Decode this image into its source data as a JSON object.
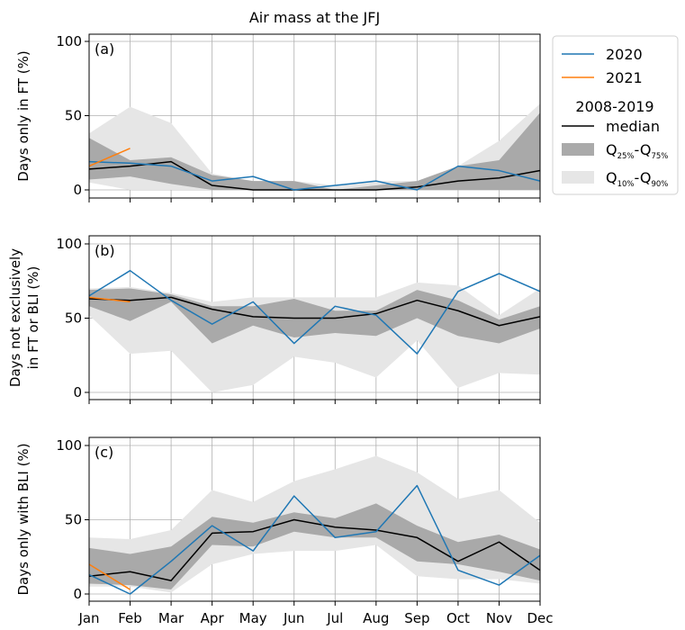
{
  "chart_data": {
    "type": "area",
    "title": "Air mass at the JFJ",
    "months": [
      "Jan",
      "Feb",
      "Mar",
      "Apr",
      "May",
      "Jun",
      "Jul",
      "Aug",
      "Sep",
      "Oct",
      "Nov",
      "Dec"
    ],
    "ylim": [
      0,
      100
    ],
    "yticks": [
      0,
      50,
      100
    ],
    "grid": true,
    "legend": {
      "placement": "right of top panel",
      "entries": [
        {
          "label": "2020",
          "color": "#1f77b4",
          "kind": "line"
        },
        {
          "label": "2021",
          "color": "#ff7f0e",
          "kind": "line"
        },
        {
          "label": "2008-2019",
          "kind": "header"
        },
        {
          "label": "median",
          "color": "#000000",
          "kind": "line"
        },
        {
          "label": "Q",
          "sub1": "25%",
          "mid": "-Q",
          "sub2": "75%",
          "color": "#aaaaaa",
          "kind": "patch"
        },
        {
          "label": "Q",
          "sub1": "10%",
          "mid": "-Q",
          "sub2": "90%",
          "color": "#e6e6e6",
          "kind": "patch"
        }
      ]
    },
    "panels": [
      {
        "label": "(a)",
        "ylabel": [
          "Days only in FT (%)"
        ],
        "s2020": [
          19,
          18,
          16,
          6,
          9,
          0,
          3,
          6,
          0,
          16,
          13,
          6
        ],
        "s2021": [
          16,
          28
        ],
        "median": [
          14,
          16,
          19,
          3,
          0,
          0,
          0,
          0,
          2,
          6,
          8,
          13
        ],
        "q25": [
          7,
          9,
          4,
          0,
          0,
          0,
          0,
          0,
          0,
          0,
          0,
          0
        ],
        "q75": [
          35,
          20,
          22,
          10,
          6,
          6,
          0,
          3,
          6,
          16,
          20,
          52
        ],
        "q10": [
          5,
          0,
          0,
          0,
          0,
          0,
          0,
          0,
          0,
          0,
          0,
          0
        ],
        "q90": [
          38,
          56,
          45,
          11,
          6,
          6,
          3,
          6,
          6,
          16,
          33,
          58
        ]
      },
      {
        "label": "(b)",
        "ylabel": [
          "Days not exclusively",
          "in FT or BLI (%)"
        ],
        "s2020": [
          65,
          82,
          62,
          46,
          61,
          33,
          58,
          52,
          26,
          68,
          80,
          68
        ],
        "s2021": [
          64,
          61
        ],
        "median": [
          63,
          62,
          64,
          56,
          51,
          50,
          50,
          53,
          62,
          55,
          45,
          51
        ],
        "q25": [
          58,
          48,
          61,
          33,
          45,
          37,
          40,
          38,
          50,
          38,
          33,
          43
        ],
        "q75": [
          69,
          70,
          66,
          58,
          58,
          63,
          55,
          55,
          69,
          62,
          49,
          58
        ],
        "q10": [
          52,
          26,
          28,
          0,
          5,
          24,
          20,
          10,
          35,
          3,
          13,
          12
        ],
        "q90": [
          70,
          71,
          67,
          61,
          64,
          64,
          64,
          64,
          74,
          72,
          52,
          70
        ]
      },
      {
        "label": "(c)",
        "ylabel": [
          "Days only with BLI (%)"
        ],
        "s2020": [
          13,
          0,
          22,
          46,
          29,
          66,
          38,
          42,
          73,
          16,
          6,
          26
        ],
        "s2021": [
          20,
          3
        ],
        "median": [
          12,
          15,
          9,
          41,
          42,
          50,
          45,
          43,
          38,
          22,
          35,
          16
        ],
        "q25": [
          7,
          6,
          3,
          33,
          32,
          42,
          38,
          38,
          22,
          20,
          15,
          9
        ],
        "q75": [
          31,
          27,
          32,
          52,
          48,
          55,
          51,
          61,
          46,
          35,
          40,
          30
        ],
        "q10": [
          5,
          5,
          1,
          20,
          27,
          29,
          29,
          33,
          12,
          10,
          10,
          7
        ],
        "q90": [
          38,
          37,
          43,
          70,
          62,
          76,
          84,
          93,
          82,
          64,
          70,
          48
        ]
      }
    ]
  }
}
